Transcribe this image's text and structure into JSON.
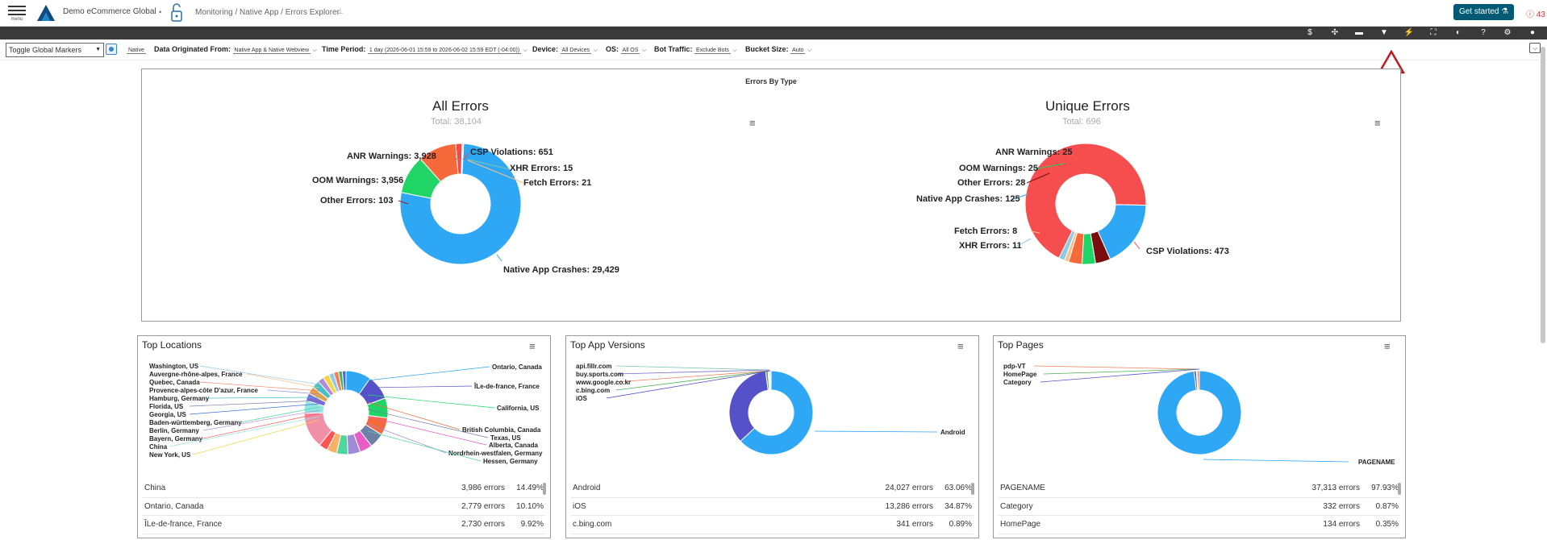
{
  "header": {
    "menu_label": "menu",
    "org": "Demo eCommerce Global",
    "breadcrumb": "Monitoring / Native App / Errors Explorer",
    "get_started": "Get started",
    "alert_count": "43"
  },
  "filters": {
    "toggle_markers": "Toggle Global Markers",
    "native_chip": "Native",
    "origin_label": "Data Originated From:",
    "origin_value": "Native App & Native Webview",
    "time_label": "Time Period:",
    "time_value": "1 day (2026-06-01 15:59 to 2026-06-02 15:59 EDT (-04:00))",
    "device_label": "Device:",
    "device_value": "All Devices",
    "os_label": "OS:",
    "os_value": "All OS",
    "bot_label": "Bot Traffic:",
    "bot_value": "Exclude Bots",
    "bucket_label": "Bucket Size:",
    "bucket_value": "Auto"
  },
  "toolbar_icons": [
    "dollar-icon",
    "share-icon",
    "comment-icon",
    "filter-icon",
    "bolt-icon",
    "fullscreen-icon",
    "contrast-icon",
    "help-icon",
    "gear-icon",
    "user-icon"
  ],
  "errors_by_type": {
    "title": "Errors By Type",
    "all": {
      "title": "All Errors",
      "total": "Total: 38,104",
      "labels": {
        "anr": "ANR Warnings: 3,928",
        "oom": "OOM Warnings: 3,956",
        "other": "Other Errors: 103",
        "csp": "CSP Violations: 651",
        "xhr": "XHR Errors: 15",
        "fetch": "Fetch Errors: 21",
        "crash": "Native App Crashes: 29,429"
      }
    },
    "unique": {
      "title": "Unique Errors",
      "total": "Total: 696",
      "labels": {
        "anr": "ANR Warnings: 25",
        "oom": "OOM Warnings: 25",
        "other": "Other Errors: 28",
        "crash": "Native App Crashes: 125",
        "fetch": "Fetch Errors: 8",
        "xhr": "XHR Errors: 11",
        "csp": "CSP Violations: 473"
      }
    }
  },
  "chart_data": [
    {
      "type": "pie",
      "title": "All Errors",
      "categories": [
        "Native App Crashes",
        "OOM Warnings",
        "ANR Warnings",
        "CSP Violations",
        "Other Errors",
        "Fetch Errors",
        "XHR Errors"
      ],
      "values": [
        29429,
        3956,
        3928,
        651,
        103,
        21,
        15
      ],
      "colors": [
        "#2ea7f5",
        "#1fd566",
        "#f6693a",
        "#ef4a4a",
        "#a3162a",
        "#f7c18a",
        "#86c4a8"
      ]
    },
    {
      "type": "pie",
      "title": "Unique Errors",
      "categories": [
        "CSP Violations",
        "Native App Crashes",
        "Other Errors",
        "OOM Warnings",
        "ANR Warnings",
        "Fetch Errors",
        "XHR Errors"
      ],
      "values": [
        473,
        125,
        28,
        25,
        25,
        8,
        11
      ],
      "colors": [
        "#f64e4e",
        "#2ea7f5",
        "#7a0d0d",
        "#1fd566",
        "#f6693a",
        "#f7c18a",
        "#8ecae6"
      ]
    }
  ],
  "locations": {
    "title": "Top Locations",
    "left_labels": [
      "Washington, US",
      "Auvergne-rhône-alpes, France",
      "Quebec, Canada",
      "Provence-alpes-côte D'azur, France",
      "Hamburg, Germany",
      "Florida, US",
      "Georgia, US",
      "Baden-württemberg, Germany",
      "Berlin, Germany",
      "Bayern, Germany",
      "China",
      "New York, US"
    ],
    "right_labels": [
      "Ontario, Canada",
      "ÎLe-de-france, France",
      "California, US",
      "British Columbia, Canada",
      "Texas, US",
      "Alberta, Canada",
      "Nordrhein-westfalen, Germany",
      "Hessen, Germany"
    ],
    "rows": [
      {
        "name": "China",
        "count": "3,986 errors",
        "pct": "14.49%"
      },
      {
        "name": "Ontario, Canada",
        "count": "2,779 errors",
        "pct": "10.10%"
      },
      {
        "name": "ÎLe-de-france, France",
        "count": "2,730 errors",
        "pct": "9.92%"
      }
    ]
  },
  "versions": {
    "title": "Top App Versions",
    "left_labels": [
      "api.fillr.com",
      "buy.sports.com",
      "www.google.co.kr",
      "c.bing.com",
      "iOS"
    ],
    "right_label": "Android",
    "rows": [
      {
        "name": "Android",
        "count": "24,027 errors",
        "pct": "63.06%"
      },
      {
        "name": "iOS",
        "count": "13,286 errors",
        "pct": "34.87%"
      },
      {
        "name": "c.bing.com",
        "count": "341 errors",
        "pct": "0.89%"
      }
    ]
  },
  "pages": {
    "title": "Top Pages",
    "left_labels": [
      "pdp-VT",
      "HomePage",
      "Category"
    ],
    "right_label": "PAGENAME",
    "rows": [
      {
        "name": "PAGENAME",
        "count": "37,313 errors",
        "pct": "97.93%"
      },
      {
        "name": "Category",
        "count": "332 errors",
        "pct": "0.87%"
      },
      {
        "name": "HomePage",
        "count": "134 errors",
        "pct": "0.35%"
      }
    ]
  }
}
